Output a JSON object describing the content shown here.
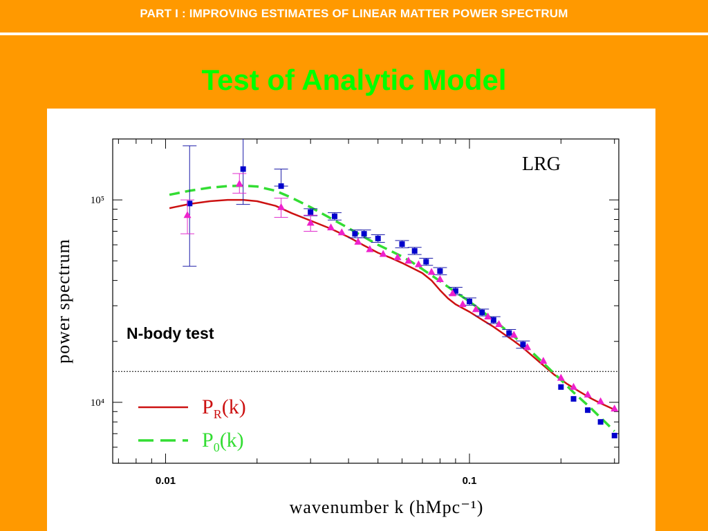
{
  "header": {
    "title": "PART I : IMPROVING ESTIMATES OF LINEAR MATTER POWER SPECTRUM"
  },
  "slide": {
    "title": "Test of Analytic Model",
    "annotation": "N-body test"
  },
  "colors": {
    "background": "#FF9900",
    "header_text": "#FFFFFF",
    "title_text": "#00FF00",
    "pr_line": "#CC1111",
    "p0_line": "#33DD33",
    "squares": "#0000CC",
    "triangles": "#EE22CC",
    "errorbar_blue": "#1A1AA8",
    "errorbar_magenta": "#E02ACD"
  },
  "chart_data": {
    "type": "scatter",
    "title": "",
    "xlabel": "wavenumber k (hMpc⁻¹)",
    "ylabel": "power spectrum",
    "x_scale": "log",
    "y_scale": "log",
    "xlim": [
      0.0067,
      0.31
    ],
    "ylim": [
      5000,
      200000
    ],
    "xticks": [
      {
        "value": 0.01,
        "label": "0.01"
      },
      {
        "value": 0.1,
        "label": "0.1"
      }
    ],
    "yticks": [
      {
        "value": 10000,
        "label": "10⁴"
      },
      {
        "value": 100000,
        "label": "10⁵"
      }
    ],
    "inset_label": "LRG",
    "reference_line": {
      "y": 14200,
      "style": "dotted"
    },
    "legend": [
      {
        "label": "P",
        "sub": "R",
        "suffix": "(k)",
        "series": "P_R",
        "style": "solid"
      },
      {
        "label": "P",
        "sub": "0",
        "suffix": "(k)",
        "series": "P_0",
        "style": "dashed"
      }
    ],
    "legend_position": "bottom-left",
    "series": [
      {
        "name": "P_R(k)",
        "kind": "line",
        "style": "solid",
        "x": [
          0.0103,
          0.012,
          0.014,
          0.016,
          0.018,
          0.02,
          0.023,
          0.026,
          0.03,
          0.035,
          0.04,
          0.045,
          0.05,
          0.055,
          0.06,
          0.065,
          0.07,
          0.075,
          0.08,
          0.085,
          0.09,
          0.1,
          0.11,
          0.12,
          0.13,
          0.14,
          0.15,
          0.17,
          0.19,
          0.21,
          0.23,
          0.25,
          0.27,
          0.3
        ],
        "y": [
          91000,
          95500,
          98500,
          100000,
          100000,
          98500,
          93500,
          86000,
          79000,
          72000,
          65500,
          59500,
          54800,
          51800,
          48800,
          46000,
          43500,
          40000,
          35800,
          32600,
          30500,
          28000,
          25600,
          23600,
          21700,
          20100,
          18600,
          15800,
          13700,
          12300,
          11300,
          10500,
          9900,
          9200
        ]
      },
      {
        "name": "P_0(k)",
        "kind": "line",
        "style": "dashed",
        "x": [
          0.0103,
          0.012,
          0.014,
          0.016,
          0.018,
          0.02,
          0.023,
          0.026,
          0.03,
          0.035,
          0.04,
          0.045,
          0.05,
          0.055,
          0.06,
          0.065,
          0.07,
          0.08,
          0.09,
          0.1,
          0.11,
          0.12,
          0.14,
          0.16,
          0.18,
          0.2,
          0.22,
          0.25,
          0.27,
          0.3
        ],
        "y": [
          106000,
          111000,
          115000,
          117000,
          117500,
          116500,
          111000,
          102500,
          92000,
          81000,
          72500,
          65500,
          60000,
          56000,
          52500,
          49000,
          45500,
          39700,
          35000,
          31500,
          28200,
          25500,
          21200,
          17800,
          15000,
          12900,
          11200,
          9400,
          8400,
          7200
        ]
      },
      {
        "name": "blue squares",
        "kind": "points",
        "marker": "square",
        "x": [
          0.012,
          0.018,
          0.024,
          0.03,
          0.036,
          0.042,
          0.045,
          0.05,
          0.06,
          0.066,
          0.072,
          0.08,
          0.09,
          0.1,
          0.11,
          0.12,
          0.135,
          0.15,
          0.2,
          0.22,
          0.245,
          0.27,
          0.3
        ],
        "y": [
          96000,
          142000,
          117000,
          87000,
          83000,
          68000,
          68000,
          64500,
          60500,
          56000,
          49500,
          44500,
          35500,
          31500,
          27800,
          25500,
          22000,
          19300,
          11900,
          10400,
          9150,
          8000,
          6850
        ],
        "err_low": [
          47000,
          95000,
          0,
          0,
          0,
          0,
          0,
          0,
          0,
          0,
          0,
          0,
          0,
          0,
          0,
          0,
          0,
          0,
          0,
          0,
          0,
          0,
          0
        ],
        "err_high": [
          185000,
          205000,
          142000,
          0,
          0,
          0,
          0,
          0,
          0,
          0,
          0,
          0,
          0,
          0,
          0,
          0,
          0,
          0,
          0,
          0,
          0,
          0,
          0
        ],
        "err_half": [
          0,
          0,
          0,
          3500,
          3500,
          3000,
          3000,
          2800,
          2500,
          2300,
          2000,
          1800,
          1500,
          1300,
          1100,
          1000,
          900,
          800,
          0,
          0,
          0,
          0,
          0
        ]
      },
      {
        "name": "magenta triangles",
        "kind": "points",
        "marker": "triangle",
        "x": [
          0.0118,
          0.0175,
          0.024,
          0.03,
          0.035,
          0.038,
          0.043,
          0.047,
          0.052,
          0.058,
          0.063,
          0.068,
          0.075,
          0.08,
          0.088,
          0.095,
          0.105,
          0.115,
          0.125,
          0.14,
          0.155,
          0.175,
          0.2,
          0.22,
          0.245,
          0.27,
          0.3
        ],
        "y": [
          84000,
          120000,
          92000,
          77000,
          73000,
          69000,
          62000,
          57000,
          54000,
          52000,
          50000,
          48000,
          44000,
          40500,
          34500,
          30500,
          28800,
          26500,
          24300,
          21500,
          18700,
          16000,
          13200,
          11900,
          10900,
          10100,
          9300
        ],
        "err_low": [
          68000,
          108000,
          82000,
          70000,
          0,
          0,
          0,
          0,
          0,
          0,
          0,
          0,
          0,
          0,
          0,
          0,
          0,
          0,
          0,
          0,
          0,
          0,
          0,
          0,
          0,
          0,
          0
        ],
        "err_high": [
          100000,
          135000,
          102000,
          84000,
          0,
          0,
          0,
          0,
          0,
          0,
          0,
          0,
          0,
          0,
          0,
          0,
          0,
          0,
          0,
          0,
          0,
          0,
          0,
          0,
          0,
          0,
          0
        ]
      }
    ]
  }
}
